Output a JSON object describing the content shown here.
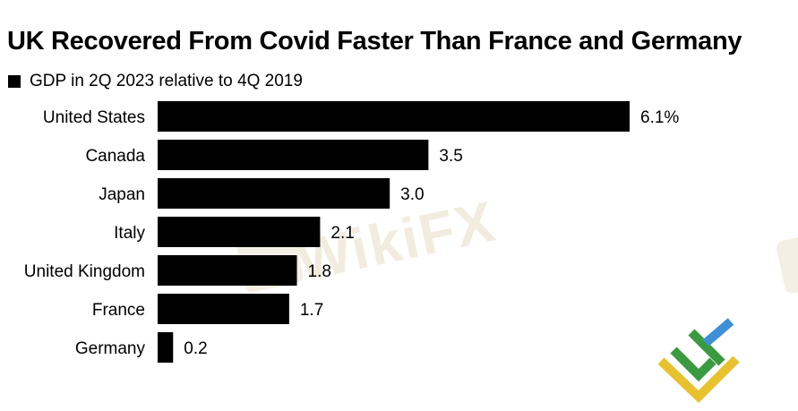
{
  "chart_data": {
    "type": "bar",
    "orientation": "horizontal",
    "title": "UK Recovered From Covid Faster Than France and Germany",
    "legend": [
      {
        "name": "GDP in 2Q 2023 relative to 4Q 2019",
        "color": "#000000"
      }
    ],
    "legend_position": "top-left",
    "categories": [
      "United States",
      "Canada",
      "Japan",
      "Italy",
      "United Kingdom",
      "France",
      "Germany"
    ],
    "values": [
      6.1,
      3.5,
      3.0,
      2.1,
      1.8,
      1.7,
      0.2
    ],
    "value_labels": [
      "6.1%",
      "3.5",
      "3.0",
      "2.1",
      "1.8",
      "1.7",
      "0.2"
    ],
    "xlim": [
      0,
      6.1
    ],
    "grid": false,
    "bar_color": "#000000"
  },
  "watermark": {
    "text": "WikiFX"
  },
  "colors": {
    "logo_green": "#3a9a3f",
    "logo_blue": "#3d8fd6",
    "logo_yellow": "#e8c22e",
    "watermark": "#f2ecdf"
  }
}
